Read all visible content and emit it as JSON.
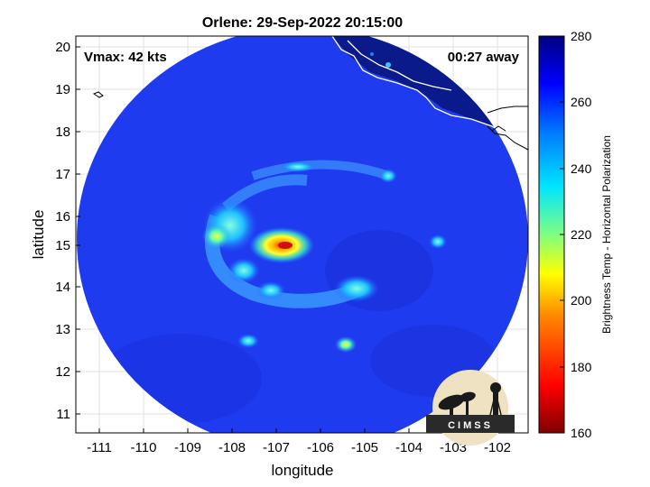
{
  "title": "Orlene: 29-Sep-2022 20:15:00",
  "vmax_label": "Vmax: 42 kts",
  "time_away_label": "00:27 away",
  "xlabel": "longitude",
  "ylabel": "latitude",
  "x_ticks": [
    "-111",
    "-110",
    "-109",
    "-108",
    "-107",
    "-106",
    "-105",
    "-104",
    "-103",
    "-102"
  ],
  "y_ticks": [
    "20",
    "19",
    "18",
    "17",
    "16",
    "15",
    "14",
    "13",
    "12",
    "11"
  ],
  "colorbar": {
    "title": "Brightness Temp - Horizontal Polarization",
    "ticks": [
      "280",
      "260",
      "240",
      "220",
      "200",
      "180",
      "160"
    ],
    "range": [
      160,
      280
    ]
  },
  "logo_text": "CIMSS",
  "colors": {
    "background_blue": "#1f3bf0",
    "land_navy": "#0a1a8a",
    "core_red": "#d01010"
  }
}
